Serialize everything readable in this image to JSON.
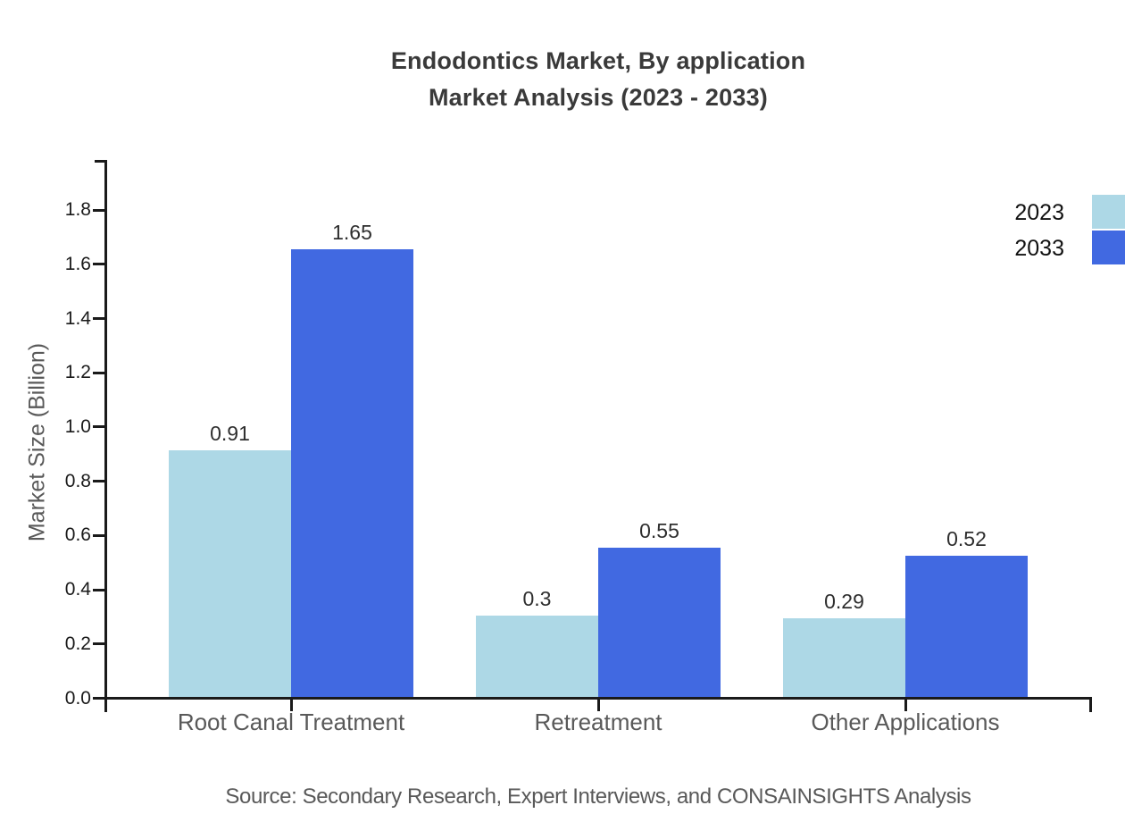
{
  "title": {
    "line1": "Endodontics Market, By application",
    "line2": "Market Analysis (2023 - 2033)"
  },
  "source": "Source: Secondary Research, Expert Interviews, and CONSAINSIGHTS Analysis",
  "chart_data": {
    "type": "bar",
    "title": "Endodontics Market, By application Market Analysis (2023 - 2033)",
    "categories": [
      "Root Canal Treatment",
      "Retreatment",
      "Other Applications"
    ],
    "series": [
      {
        "name": "2023",
        "color": "#ADD8E6",
        "values": [
          0.91,
          0.3,
          0.29
        ]
      },
      {
        "name": "2033",
        "color": "#4169E1",
        "values": [
          1.65,
          0.55,
          0.52
        ]
      }
    ],
    "xlabel": "",
    "ylabel": "Market Size (Billion)",
    "ylim": [
      0,
      1.98
    ],
    "yticks": [
      0.0,
      0.2,
      0.4,
      0.6,
      0.8,
      1.0,
      1.2,
      1.4,
      1.6,
      1.8
    ],
    "grid": false,
    "legend_position": "upper-right",
    "value_labels": true,
    "axis_color": "#1a1a1a",
    "label_color": "#595959",
    "value_label_color": "#2e2e2e"
  }
}
